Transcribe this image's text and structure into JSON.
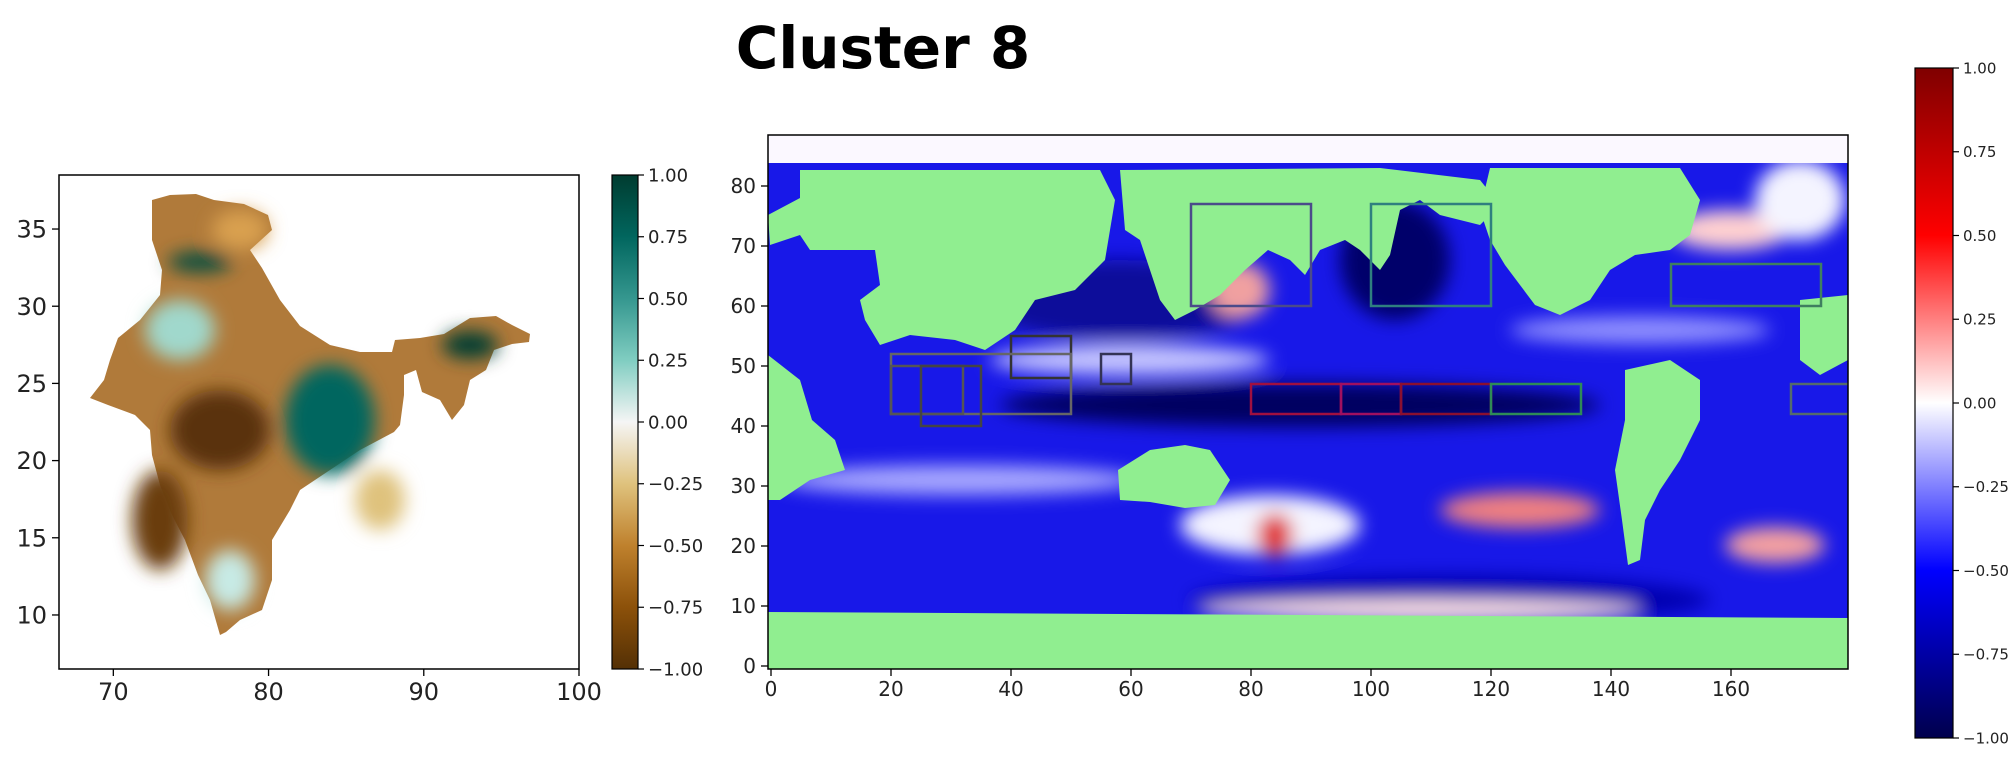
{
  "title": "Cluster 8",
  "colors": {
    "land": "#90ee90",
    "frame": "#000000",
    "brbg_neg": "#543005",
    "brbg_pos": "#003c30",
    "seismic_neg": "#00004c",
    "seismic_pos": "#7f0000"
  },
  "chart_data": [
    {
      "type": "heatmap",
      "name": "india_map",
      "x_ticks": [
        "70",
        "80",
        "90",
        "100"
      ],
      "x_tick_values": [
        70,
        80,
        90,
        100
      ],
      "y_ticks": [
        "10",
        "15",
        "20",
        "25",
        "30",
        "35"
      ],
      "y_tick_values": [
        10,
        15,
        20,
        25,
        30,
        35
      ],
      "xlim": [
        66.5,
        100
      ],
      "ylim": [
        6.5,
        38.5
      ],
      "colormap": "BrBG",
      "colorbar_ticks": [
        "1.00",
        "0.75",
        "0.50",
        "0.25",
        "0.00",
        "−0.25",
        "−0.50",
        "−0.75",
        "−1.00"
      ],
      "colorbar_values": [
        1.0,
        0.75,
        0.5,
        0.25,
        0.0,
        -0.25,
        -0.5,
        -0.75,
        -1.0
      ],
      "clim": [
        -1,
        1
      ],
      "grid": false
    },
    {
      "type": "heatmap",
      "name": "global_ocean_map",
      "x_ticks": [
        "0",
        "20",
        "40",
        "60",
        "80",
        "100",
        "120",
        "140",
        "160"
      ],
      "x_tick_values": [
        0,
        20,
        40,
        60,
        80,
        100,
        120,
        140,
        160
      ],
      "y_ticks": [
        "0",
        "10",
        "20",
        "30",
        "40",
        "50",
        "60",
        "70",
        "80"
      ],
      "y_tick_values": [
        0,
        10,
        20,
        30,
        40,
        50,
        60,
        70,
        80
      ],
      "xlim": [
        -0.5,
        179.5
      ],
      "ylim": [
        -0.5,
        88.5
      ],
      "colormap": "seismic",
      "colorbar_ticks": [
        "1.00",
        "0.75",
        "0.50",
        "0.25",
        "0.00",
        "−0.25",
        "−0.50",
        "−0.75",
        "−1.00"
      ],
      "colorbar_values": [
        1.0,
        0.75,
        0.5,
        0.25,
        0.0,
        -0.25,
        -0.5,
        -0.75,
        -1.0
      ],
      "clim": [
        -1,
        1
      ],
      "grid": false,
      "regions": [
        {
          "x0": 70,
          "x1": 90,
          "y0": 60,
          "y1": 77,
          "color": "#4b4b8a"
        },
        {
          "x0": 100,
          "x1": 120,
          "y0": 60,
          "y1": 77,
          "color": "#2f7f7f"
        },
        {
          "x0": 150,
          "x1": 175,
          "y0": 60,
          "y1": 67,
          "color": "#3f7f5f"
        },
        {
          "x0": 40,
          "x1": 50,
          "y0": 48,
          "y1": 55,
          "color": "#333333"
        },
        {
          "x0": 55,
          "x1": 60,
          "y0": 47,
          "y1": 52,
          "color": "#333355"
        },
        {
          "x0": 20,
          "x1": 50,
          "y0": 42,
          "y1": 52,
          "color": "#666666"
        },
        {
          "x0": 20,
          "x1": 32,
          "y0": 42,
          "y1": 50,
          "color": "#555555"
        },
        {
          "x0": 25,
          "x1": 35,
          "y0": 40,
          "y1": 50,
          "color": "#444444"
        },
        {
          "x0": 80,
          "x1": 95,
          "y0": 42,
          "y1": 47,
          "color": "#a01040"
        },
        {
          "x0": 95,
          "x1": 105,
          "y0": 42,
          "y1": 47,
          "color": "#a01060"
        },
        {
          "x0": 105,
          "x1": 120,
          "y0": 42,
          "y1": 47,
          "color": "#8b1030"
        },
        {
          "x0": 120,
          "x1": 135,
          "y0": 42,
          "y1": 47,
          "color": "#2e8b57"
        },
        {
          "x0": 170,
          "x1": 180,
          "y0": 42,
          "y1": 47,
          "color": "#556b6b"
        }
      ]
    }
  ]
}
